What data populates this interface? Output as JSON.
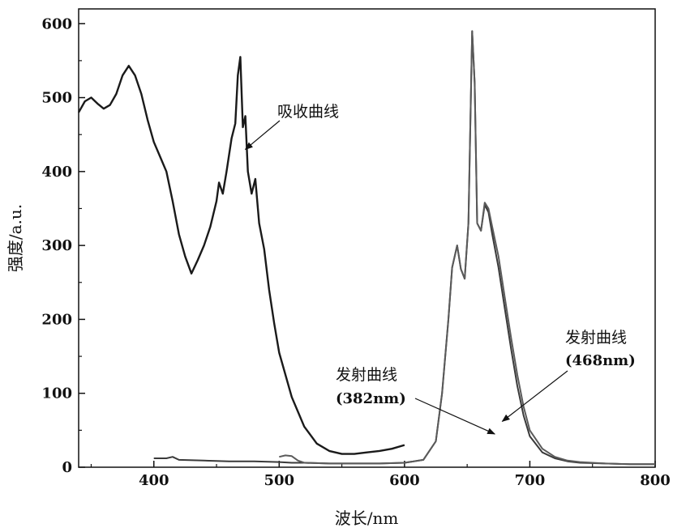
{
  "chart_data": {
    "type": "line",
    "xlabel": "波长/nm",
    "ylabel": "强度/a.u.",
    "xlim": [
      340,
      800
    ],
    "ylim": [
      0,
      620
    ],
    "xticks": [
      400,
      500,
      600,
      700,
      800
    ],
    "yticks": [
      0,
      100,
      200,
      300,
      400,
      500,
      600
    ],
    "grid": false,
    "legend": "none",
    "series": [
      {
        "color": "#1a1a1a",
        "x": [
          340,
          345,
          350,
          355,
          360,
          365,
          370,
          375,
          380,
          385,
          390,
          395,
          400,
          405,
          410,
          415,
          420,
          425,
          430,
          435,
          440,
          445,
          450,
          452,
          455,
          458,
          462,
          465,
          467,
          469,
          471,
          473,
          475,
          478,
          481,
          484,
          488,
          492,
          496,
          500,
          510,
          520,
          530,
          540,
          550,
          560,
          570,
          580,
          590,
          600
        ],
        "y": [
          480,
          495,
          500,
          492,
          485,
          490,
          505,
          530,
          543,
          530,
          505,
          470,
          440,
          420,
          400,
          360,
          315,
          285,
          262,
          280,
          300,
          325,
          360,
          385,
          370,
          400,
          445,
          465,
          530,
          555,
          460,
          475,
          400,
          370,
          390,
          330,
          295,
          240,
          195,
          155,
          95,
          55,
          32,
          22,
          18,
          18,
          20,
          22,
          25,
          30
        ]
      },
      {
        "color": "#3a3a3a",
        "x": [
          400,
          410,
          415,
          420,
          440,
          460,
          480,
          500,
          510,
          520,
          540,
          560,
          580,
          600,
          615,
          625,
          630,
          635,
          638,
          642,
          645,
          648,
          651,
          654,
          656,
          658,
          661,
          664,
          667,
          670,
          675,
          680,
          685,
          690,
          695,
          700,
          710,
          720,
          730,
          740,
          760,
          780,
          800
        ],
        "y": [
          12,
          12,
          14,
          10,
          9,
          8,
          8,
          7,
          6,
          6,
          5,
          5,
          5,
          6,
          10,
          35,
          100,
          200,
          270,
          300,
          268,
          255,
          330,
          590,
          520,
          330,
          320,
          355,
          345,
          315,
          270,
          215,
          160,
          110,
          70,
          42,
          20,
          12,
          8,
          6,
          5,
          4,
          4
        ]
      },
      {
        "color": "#5a5a5a",
        "x": [
          500,
          505,
          510,
          515,
          520,
          540,
          560,
          580,
          600,
          615,
          625,
          630,
          635,
          638,
          642,
          645,
          648,
          651,
          654,
          656,
          658,
          661,
          664,
          667,
          670,
          675,
          680,
          685,
          690,
          695,
          700,
          710,
          720,
          730,
          740,
          760,
          780,
          800
        ],
        "y": [
          14,
          16,
          15,
          9,
          6,
          5,
          5,
          5,
          6,
          10,
          35,
          100,
          200,
          270,
          300,
          268,
          255,
          330,
          590,
          520,
          330,
          320,
          358,
          350,
          325,
          285,
          230,
          175,
          125,
          82,
          50,
          25,
          14,
          9,
          7,
          5,
          4,
          4
        ]
      }
    ],
    "annotations": [
      {
        "text": "吸收曲线",
        "point": [
          473,
          430
        ]
      },
      {
        "text": "发射曲线",
        "sub": "(382nm)",
        "point": [
          672,
          45
        ]
      },
      {
        "text": "发射曲线",
        "sub": "(468nm)",
        "point": [
          678,
          62
        ]
      }
    ]
  }
}
